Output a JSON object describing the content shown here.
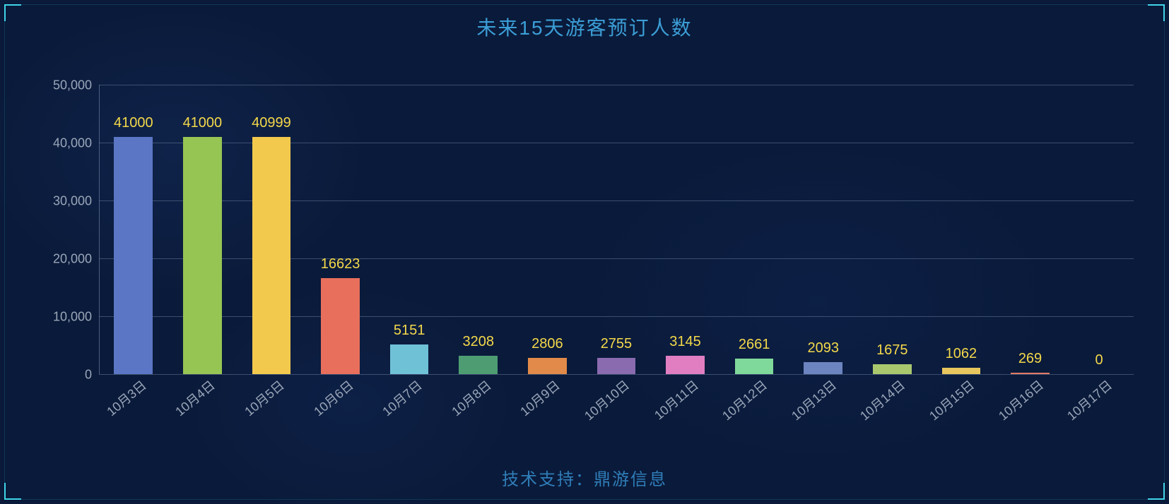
{
  "title": "未来15天游客预订人数",
  "footer": "技术支持：鼎游信息",
  "colors": {
    "background": "#0a1a3a",
    "title_color": "#3b9ed6",
    "footer_color": "#2f7db8",
    "corner_color": "#3fd4e8",
    "grid_color": "rgba(120,140,170,0.45)",
    "tick_color": "#9aa6b8",
    "value_label_color": "#f4d94a"
  },
  "chart": {
    "type": "bar",
    "title_fontsize": 28,
    "label_fontsize": 20,
    "tick_fontsize": 18,
    "ylim": [
      0,
      50000
    ],
    "ytick_step": 10000,
    "yticks": [
      {
        "value": 0,
        "label": "0"
      },
      {
        "value": 10000,
        "label": "10,000"
      },
      {
        "value": 20000,
        "label": "20,000"
      },
      {
        "value": 30000,
        "label": "30,000"
      },
      {
        "value": 40000,
        "label": "40,000"
      },
      {
        "value": 50000,
        "label": "50,000"
      }
    ],
    "bar_width": 0.56,
    "xlabel_rotation": -40,
    "categories": [
      "10月3日",
      "10月4日",
      "10月5日",
      "10月6日",
      "10月7日",
      "10月8日",
      "10月9日",
      "10月10日",
      "10月11日",
      "10月12日",
      "10月13日",
      "10月14日",
      "10月15日",
      "10月16日",
      "10月17日"
    ],
    "values": [
      41000,
      41000,
      40999,
      16623,
      5151,
      3208,
      2806,
      2755,
      3145,
      2661,
      2093,
      1675,
      1062,
      269,
      0
    ],
    "value_labels": [
      "41000",
      "41000",
      "40999",
      "16623",
      "5151",
      "3208",
      "2806",
      "2755",
      "3145",
      "2661",
      "2093",
      "1675",
      "1062",
      "269",
      "0"
    ],
    "bar_colors": [
      "#5a76c4",
      "#97c554",
      "#f2c94c",
      "#e76f5c",
      "#6fc1d6",
      "#4e9d72",
      "#e28a4a",
      "#8a6bb0",
      "#e07ec1",
      "#7fd99a",
      "#6c84c0",
      "#a9c86e",
      "#e8c65e",
      "#e07a63",
      "#7cc6d8"
    ]
  }
}
